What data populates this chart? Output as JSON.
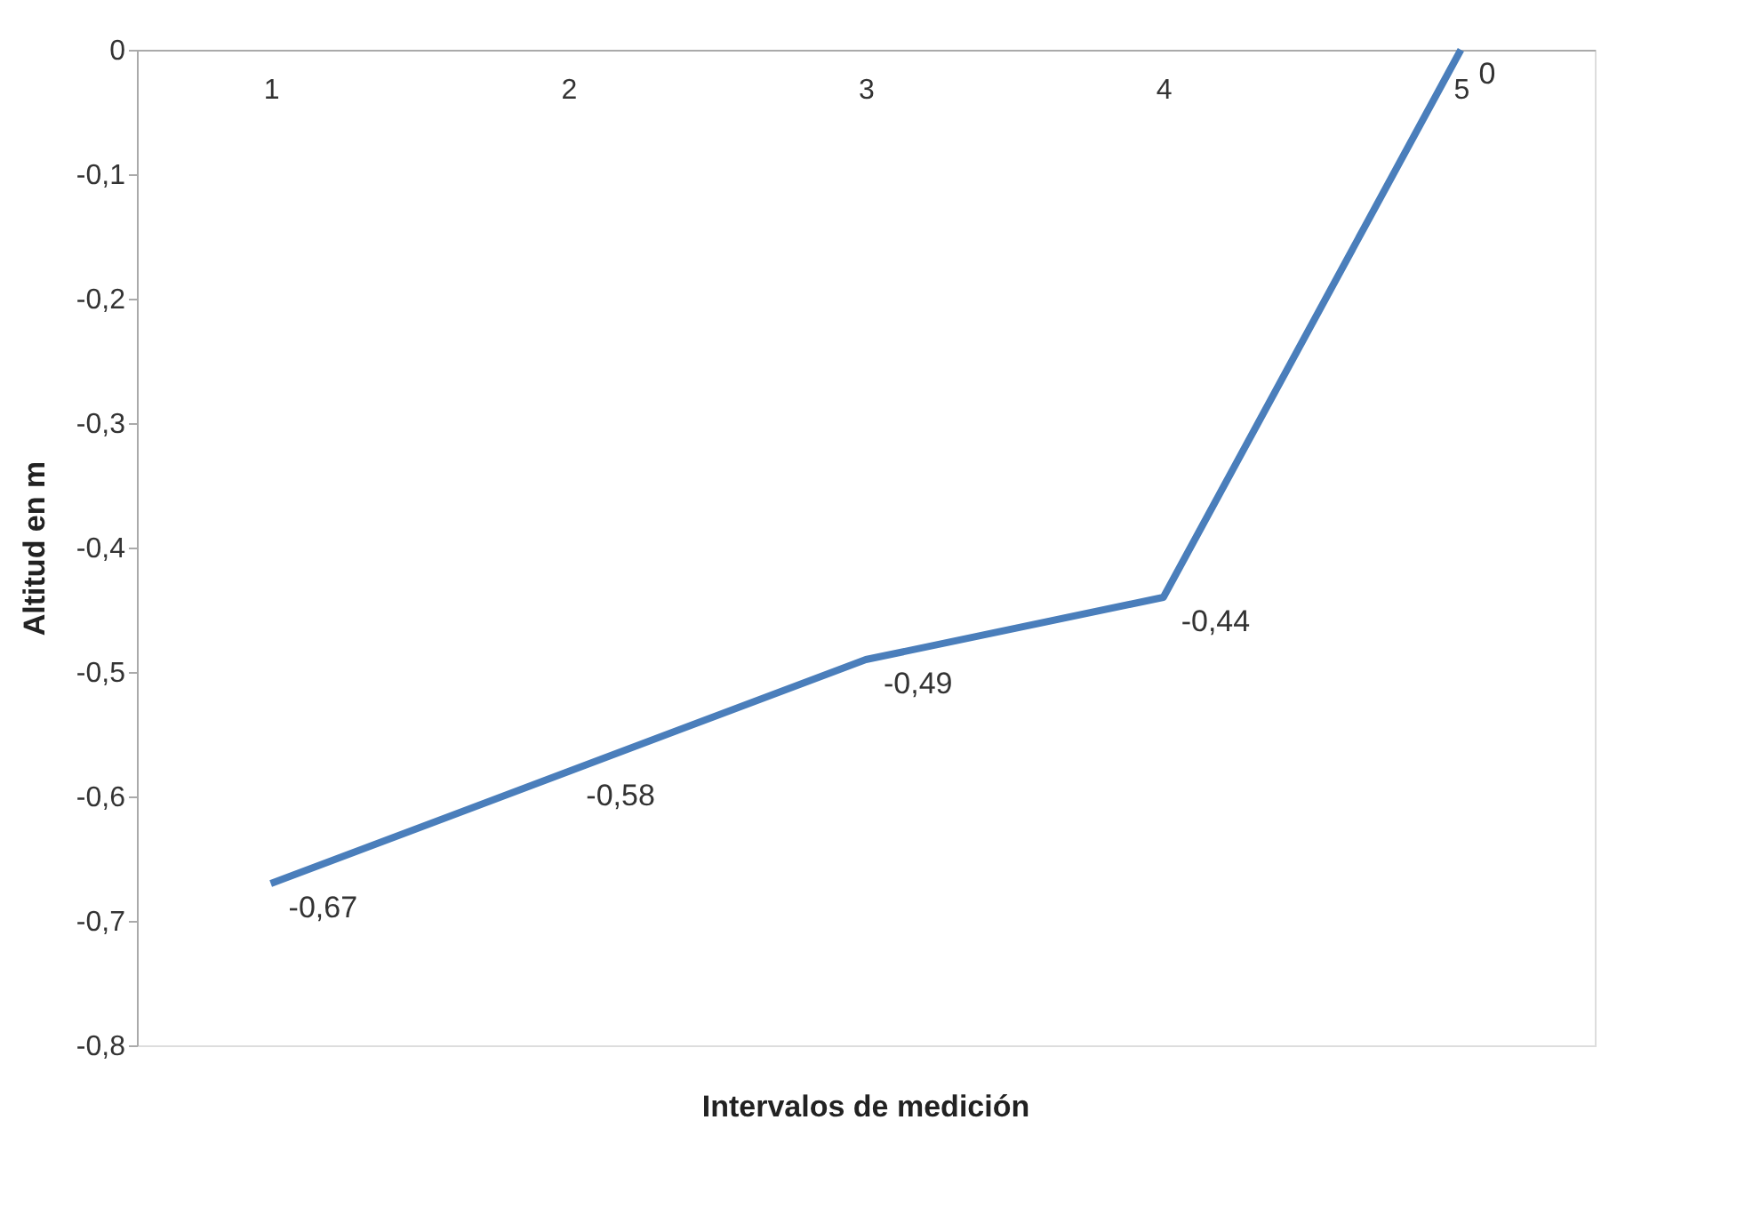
{
  "chart_data": {
    "type": "line",
    "xlabel": "Intervalos de medición",
    "ylabel": "Altitud en m",
    "categories": [
      "1",
      "2",
      "3",
      "4",
      "5"
    ],
    "series": [
      {
        "color": "#4a7ebb",
        "values": [
          -0.67,
          -0.58,
          -0.49,
          -0.44,
          0
        ],
        "value_labels": [
          "-0,67",
          "-0,58",
          "-0,49",
          "-0,44",
          "0"
        ]
      }
    ],
    "ylim": [
      -0.8,
      0
    ],
    "yticks": [
      0,
      {
        "value": -0.1,
        "label": "-0,1"
      },
      {
        "value": -0.2,
        "label": "-0,2"
      },
      {
        "value": -0.3,
        "label": "-0,3"
      },
      {
        "value": -0.4,
        "label": "-0,4"
      },
      {
        "value": -0.5,
        "label": "-0,5"
      },
      {
        "value": -0.6,
        "label": "-0,6"
      },
      {
        "value": -0.7,
        "label": "-0,7"
      },
      {
        "value": -0.8,
        "label": "-0,8"
      }
    ],
    "grid": false,
    "marker": "none",
    "line_style": "solid"
  }
}
